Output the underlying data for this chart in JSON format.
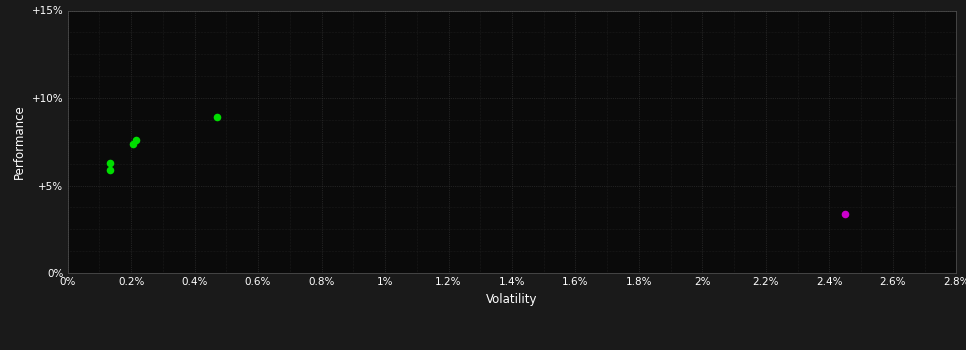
{
  "background_color": "#1a1a1a",
  "plot_bg_color": "#0a0a0a",
  "grid_color": "#3a3a3a",
  "text_color": "#ffffff",
  "xlabel": "Volatility",
  "ylabel": "Performance",
  "xlim": [
    0.0,
    0.028
  ],
  "ylim": [
    0.0,
    0.15
  ],
  "xtick_vals": [
    0.0,
    0.002,
    0.004,
    0.006,
    0.008,
    0.01,
    0.012,
    0.014,
    0.016,
    0.018,
    0.02,
    0.022,
    0.024,
    0.026,
    0.028
  ],
  "xtick_labels": [
    "0%",
    "0.2%",
    "0.4%",
    "0.6%",
    "0.8%",
    "1%",
    "1.2%",
    "1.4%",
    "1.6%",
    "1.8%",
    "2%",
    "2.2%",
    "2.4%",
    "2.6%",
    "2.8%"
  ],
  "ytick_vals": [
    0.0,
    0.05,
    0.1,
    0.15
  ],
  "ytick_labels": [
    "0%",
    "+5%",
    "+10%",
    "+15%"
  ],
  "green_points": [
    [
      0.00135,
      0.063
    ],
    [
      0.00135,
      0.059
    ],
    [
      0.00205,
      0.074
    ],
    [
      0.00215,
      0.076
    ],
    [
      0.0047,
      0.089
    ]
  ],
  "green_color": "#00dd00",
  "magenta_points": [
    [
      0.0245,
      0.034
    ]
  ],
  "magenta_color": "#cc00cc",
  "marker_size": 30
}
